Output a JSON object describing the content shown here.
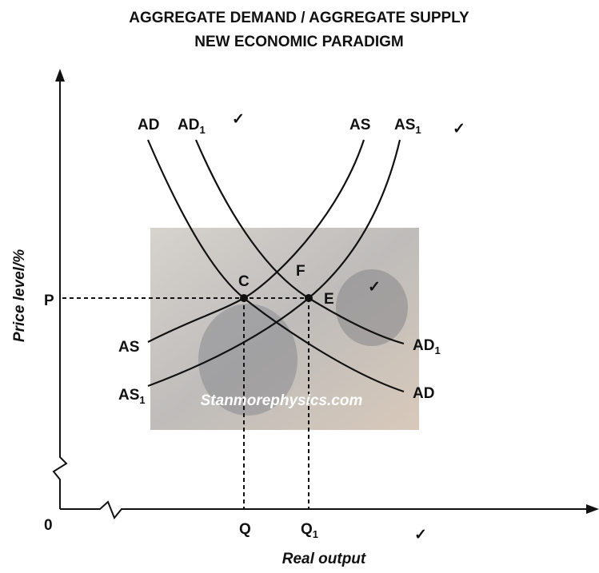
{
  "title": [
    "AGGREGATE DEMAND / AGGREGATE SUPPLY",
    "NEW ECONOMIC PARADIGM"
  ],
  "axes": {
    "y_label": "Price level/%",
    "x_label": "Real output",
    "origin": "0",
    "p": "P",
    "q": "Q",
    "q1": {
      "main": "Q",
      "sub": "1"
    }
  },
  "curve_labels": {
    "top_ad": "AD",
    "top_ad1": {
      "main": "AD",
      "sub": "1"
    },
    "top_as": "AS",
    "top_as1": {
      "main": "AS",
      "sub": "1"
    },
    "left_as": "AS",
    "left_as1": {
      "main": "AS",
      "sub": "1"
    },
    "right_ad1": {
      "main": "AD",
      "sub": "1"
    },
    "right_ad": "AD"
  },
  "points": {
    "c": "C",
    "f": "F",
    "e": "E"
  },
  "ticks": [
    "✓",
    "✓",
    "✓",
    "✓"
  ],
  "watermark": "Stanmorephysics.com"
}
